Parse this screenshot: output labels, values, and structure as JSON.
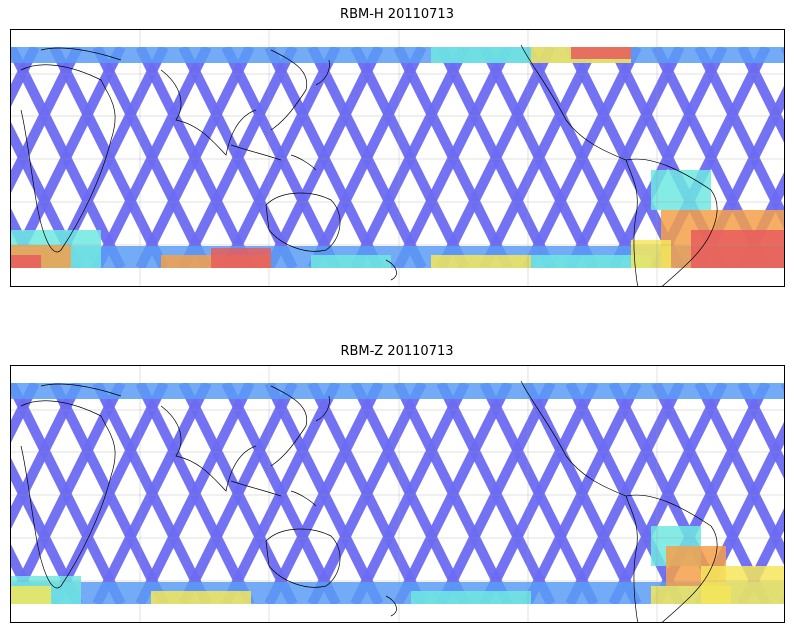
{
  "panels": [
    {
      "title": "RBM-H 20110713"
    },
    {
      "title": "RBM-Z 20110713"
    }
  ],
  "colors": {
    "low": "#6a6af2",
    "mid_low": "#5b9cf5",
    "mid": "#6ee8e0",
    "mid_high": "#9df58a",
    "high": "#f5e65a",
    "higher": "#f5a04a",
    "max": "#e85c5c"
  }
}
